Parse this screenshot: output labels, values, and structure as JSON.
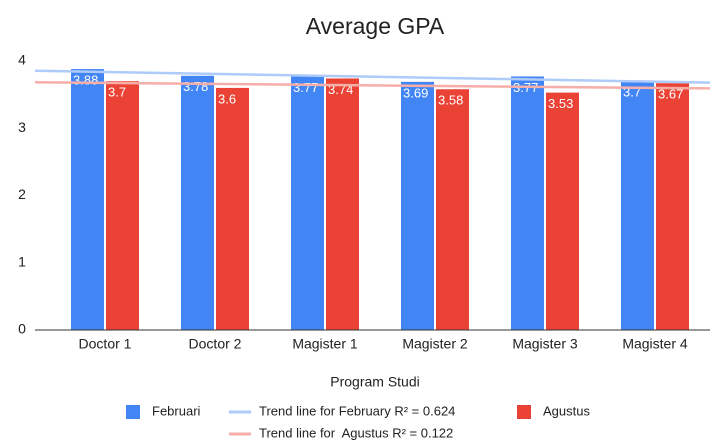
{
  "chart_data": {
    "type": "bar",
    "title": "Average GPA",
    "x_label": "Program Studi",
    "categories": [
      "Doctor 1",
      "Doctor 2",
      "Magister 1",
      "Magister 2",
      "Magister 3",
      "Magister 4"
    ],
    "series": [
      {
        "name": "Februari",
        "color": "#4285f4",
        "values": [
          3.88,
          3.78,
          3.77,
          3.69,
          3.77,
          3.7
        ],
        "trendline": {
          "name": "Trend line for February R² = 0.624",
          "color": "#aecbfa"
        }
      },
      {
        "name": "Agustus",
        "color": "#ea4335",
        "values": [
          3.7,
          3.6,
          3.74,
          3.58,
          3.53,
          3.67
        ],
        "trendline": {
          "name": "Trend line for  Agustus R² = 0.122",
          "color": "#f6aea9"
        }
      }
    ],
    "ylim": [
      0,
      4
    ],
    "yticks": [
      0,
      1,
      2,
      3,
      4
    ],
    "grid": false,
    "legend": "bottom"
  }
}
